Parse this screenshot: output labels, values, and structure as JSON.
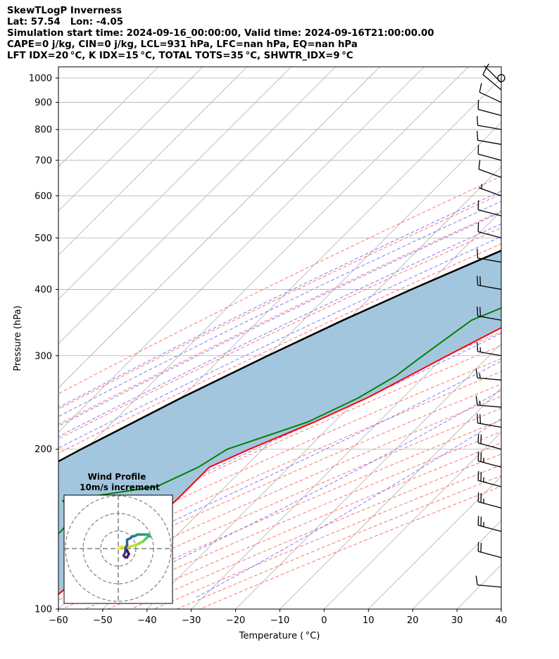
{
  "header": {
    "title": "SkewTLogP Inverness",
    "location": "Lat: 57.54   Lon: -4.05",
    "times": "Simulation start time: 2024-09-16_00:00:00, Valid time: 2024-09-16T21:00:00.00",
    "indices1": "CAPE=0 j/kg, CIN=0 j/kg, LCL=931 hPa, LFC=nan hPa, EQ=nan hPa",
    "indices2": "LFT IDX=20 °C, K IDX=15 °C, TOTAL TOTS=35 °C, SHWTR_IDX=9 °C"
  },
  "hodograph": {
    "title": "Wind Profile",
    "subtitle": "10m/s increment"
  },
  "chart_data": {
    "type": "line",
    "xlabel": "Temperature ( °C)",
    "ylabel": "Pressure (hPa)",
    "xlim": [
      -60,
      40
    ],
    "ylim": [
      1050,
      100
    ],
    "yscale": "log",
    "skew": "45 degrees",
    "xticks": [
      -60,
      -50,
      -40,
      -30,
      -20,
      -10,
      0,
      10,
      20,
      30,
      40
    ],
    "xtick_labels": [
      "−60",
      "−50",
      "−40",
      "−30",
      "−20",
      "−10",
      "0",
      "10",
      "20",
      "30",
      "40"
    ],
    "yticks": [
      1000,
      900,
      800,
      700,
      600,
      500,
      400,
      300,
      200,
      100
    ],
    "grid": true,
    "colors": {
      "temperature": "#ff0000",
      "dewpoint": "#008000",
      "parcel": "#000000",
      "cape_cin_shade": "#a3c6df",
      "dry_adiabats": "#ff6666",
      "moist_adiabats": "#6666ff",
      "mixing_ratio": "#9966cc",
      "isotherms": "#b0b0b0"
    },
    "series": [
      {
        "key": "temperature",
        "p": [
          1013,
          1000,
          980,
          950,
          925,
          900,
          870,
          850,
          800,
          750,
          700,
          650,
          600,
          550,
          500,
          450,
          400,
          350,
          300,
          275,
          250,
          225,
          200,
          185,
          170,
          160,
          150,
          140,
          130,
          120,
          110,
          100
        ],
        "t": [
          13,
          13.5,
          14,
          14,
          14.3,
          14.5,
          14.5,
          14.2,
          13.0,
          11.0,
          9.5,
          7.0,
          4.0,
          0.5,
          -4.0,
          -9.5,
          -15.5,
          -22.0,
          -29.5,
          -33.5,
          -38.0,
          -44.5,
          -53.0,
          -58.0,
          -58.0,
          -58.0,
          -58.5,
          -59.0,
          -61.0,
          -62.0,
          -63.0,
          -64.0
        ]
      },
      {
        "key": "dewpoint",
        "p": [
          1013,
          950,
          900,
          850,
          800,
          750,
          700,
          650,
          600,
          550,
          500,
          450,
          400,
          350,
          300,
          275,
          250,
          225,
          200,
          185,
          170,
          160,
          150,
          140,
          130,
          120,
          110,
          100
        ],
        "t": [
          7.0,
          8.0,
          10.0,
          12.0,
          10.5,
          6.0,
          0.0,
          -9.0,
          -16.0,
          -17.0,
          -16.0,
          -17.0,
          -22.0,
          -32.0,
          -35.0,
          -36.5,
          -40.0,
          -46.0,
          -58.0,
          -60.5,
          -65.5,
          -83.5,
          -77.5,
          -77.0,
          -78.0,
          -78.0,
          -81.0,
          -84.0
        ]
      },
      {
        "key": "parcel",
        "p": [
          1013,
          931,
          900,
          850,
          800,
          750,
          700,
          650,
          600,
          550,
          500,
          450,
          400,
          350,
          300,
          250,
          200,
          150,
          100
        ],
        "t": [
          13,
          5.8,
          3.6,
          -0.3,
          -4.4,
          -8.8,
          -13.5,
          -18.7,
          -24.3,
          -30.5,
          -37.2,
          -44.5,
          -52.5,
          -61.0,
          -70.0,
          -80.0,
          -91.0,
          -104.0,
          -121.0
        ]
      }
    ],
    "wind_barbs": {
      "p": [
        1000,
        980,
        950,
        900,
        850,
        800,
        750,
        700,
        650,
        600,
        550,
        500,
        450,
        400,
        350,
        300,
        270,
        240,
        220,
        200,
        185,
        170,
        155,
        140,
        125,
        110
      ],
      "direction_deg": [
        320,
        315,
        310,
        295,
        285,
        280,
        280,
        285,
        290,
        290,
        285,
        285,
        280,
        280,
        280,
        280,
        275,
        275,
        280,
        285,
        285,
        285,
        285,
        285,
        285,
        275
      ],
      "speed_kt": [
        4,
        6,
        8,
        8,
        10,
        10,
        10,
        10,
        10,
        5,
        10,
        10,
        10,
        20,
        20,
        15,
        15,
        15,
        20,
        20,
        25,
        25,
        25,
        25,
        20,
        10
      ]
    },
    "hodograph": {
      "rings_ms": [
        10,
        20,
        30
      ],
      "u": [
        0,
        2,
        6,
        10,
        12,
        14,
        15,
        16,
        17,
        18,
        17,
        15,
        13,
        11,
        9,
        8,
        7,
        5,
        5,
        4,
        4,
        3,
        4,
        5,
        6,
        5
      ],
      "v": [
        0,
        1,
        1,
        2,
        3,
        4,
        5,
        6,
        7,
        7,
        8,
        8,
        8,
        8,
        7,
        7,
        6,
        5,
        2,
        0,
        -2,
        -4,
        -5,
        -5,
        -3,
        -1
      ]
    }
  }
}
